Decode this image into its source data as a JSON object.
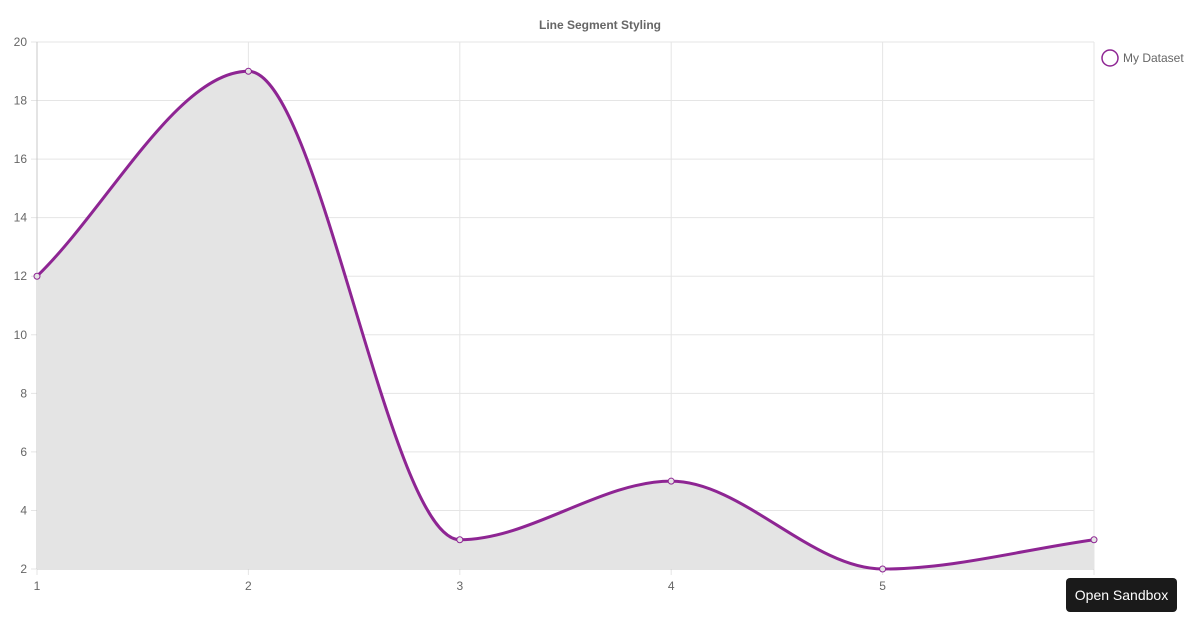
{
  "chart_data": {
    "type": "line",
    "title": "Line Segment Styling",
    "x": [
      1,
      2,
      3,
      4,
      5,
      6
    ],
    "x_tick_labels": [
      "1",
      "2",
      "3",
      "4",
      "5"
    ],
    "y_ticks": [
      2,
      4,
      6,
      8,
      10,
      12,
      14,
      16,
      18,
      20
    ],
    "ylim": [
      2,
      20
    ],
    "xlim": [
      1,
      6
    ],
    "grid": true,
    "legend_position": "right-top",
    "series": [
      {
        "name": "My Dataset",
        "values": [
          12,
          19,
          3,
          5,
          2,
          3
        ],
        "color": "#8e2593",
        "fill_color": "#e4e4e4",
        "filled": true,
        "smooth": true
      }
    ]
  },
  "toolbar": {
    "sandbox_label": "Open Sandbox"
  },
  "colors": {
    "grid": "#e5e5e5",
    "axis": "#c8c8c8",
    "text": "#666666"
  }
}
